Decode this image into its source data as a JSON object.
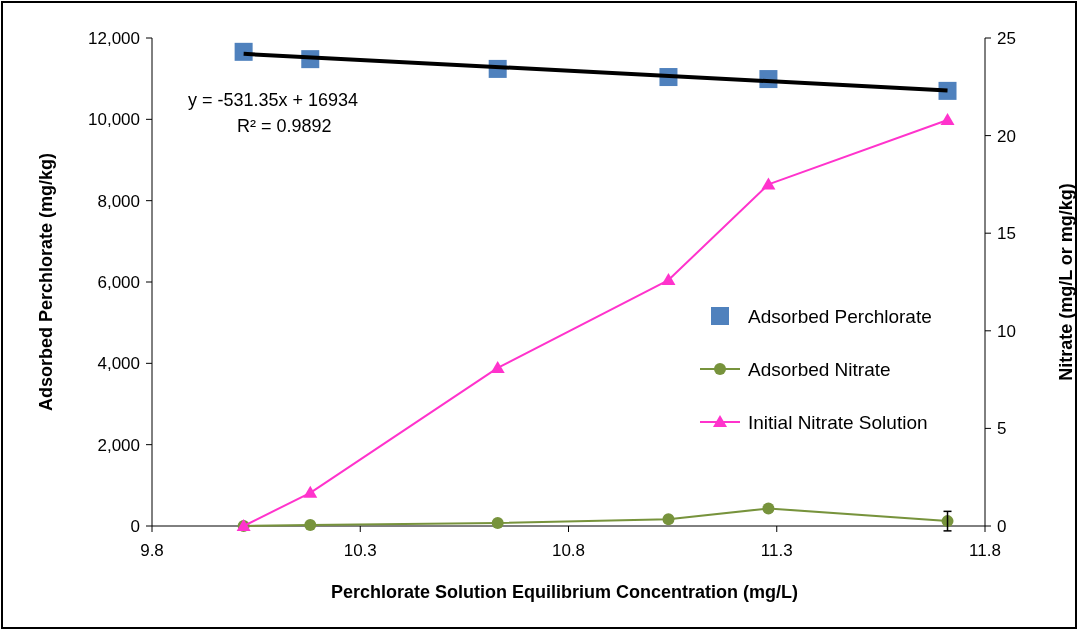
{
  "chart_data": {
    "type": "scatter",
    "xlabel": "Perchlorate Solution Equilibrium Concentration (mg/L)",
    "ylabel": "Adsorbed Perchlorate (mg/kg)",
    "y2label": "Nitrate (mg/L or mg/kg)",
    "xlim": [
      9.8,
      11.8
    ],
    "xticks": [
      9.8,
      10.3,
      10.8,
      11.3,
      11.8
    ],
    "ylim": [
      0,
      12000
    ],
    "yticks": [
      {
        "value": 0,
        "label": "0"
      },
      {
        "value": 2000,
        "label": "2,000"
      },
      {
        "value": 4000,
        "label": "4,000"
      },
      {
        "value": 6000,
        "label": "6,000"
      },
      {
        "value": 8000,
        "label": "8,000"
      },
      {
        "value": 10000,
        "label": "10,000"
      },
      {
        "value": 12000,
        "label": "12,000"
      }
    ],
    "y2lim": [
      0,
      25
    ],
    "y2ticks": [
      0,
      5,
      10,
      15,
      20,
      25
    ],
    "grid": false,
    "legend": "right",
    "annotations": [
      "y = -531.35x + 16934",
      "R² = 0.9892"
    ],
    "series": [
      {
        "name": "Adsorbed Perchlorate",
        "marker": "square",
        "color": "#4f81bd",
        "x": [
          10.02,
          10.18,
          10.63,
          11.04,
          11.28,
          11.71
        ],
        "values": [
          11660,
          11480,
          11240,
          11040,
          10990,
          10700
        ]
      },
      {
        "type": "line",
        "marker": "none",
        "color": "#000000",
        "x": [
          10.02,
          11.71
        ],
        "values": [
          11610,
          10710
        ]
      },
      {
        "name": "Adsorbed Nitrate",
        "type": "line",
        "marker": "circle",
        "axis": "y2",
        "color": "#77933c",
        "x": [
          10.02,
          10.18,
          10.63,
          11.04,
          11.28,
          11.71
        ],
        "values": [
          0,
          0.05,
          0.15,
          0.35,
          0.9,
          0.25
        ],
        "errors": [
          null,
          null,
          null,
          null,
          null,
          0.5
        ]
      },
      {
        "name": "Initial Nitrate Solution",
        "type": "line",
        "marker": "triangle",
        "axis": "y2",
        "color": "#ff33cc",
        "x": [
          10.02,
          10.18,
          10.63,
          11.04,
          11.28,
          11.71
        ],
        "values": [
          0,
          1.7,
          8.1,
          12.6,
          17.5,
          20.8
        ]
      }
    ]
  }
}
